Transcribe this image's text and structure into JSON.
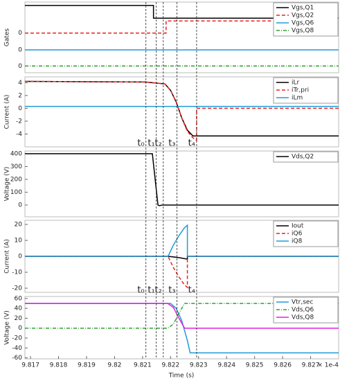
{
  "chart_data": [
    {
      "type": "line",
      "ylabel": "Gates",
      "ylim": [
        -1,
        9.5
      ],
      "yticks": [
        {
          "value": 0,
          "label": "0"
        },
        {
          "value": 2.4,
          "label": "0"
        },
        {
          "value": 4.9,
          "label": "0"
        }
      ],
      "series": [
        {
          "name": "Vgs,Q1",
          "color": "#000000",
          "style": "solid",
          "x": [
            9.8168,
            9.82139,
            9.82139,
            9.828
          ],
          "values": [
            9,
            9,
            7.1,
            7.1
          ]
        },
        {
          "name": "Vgs,Q2",
          "color": "#e8231f",
          "style": "dashed",
          "x": [
            9.8168,
            9.82184,
            9.82184,
            9.828
          ],
          "values": [
            4.9,
            4.9,
            6.7,
            6.7
          ]
        },
        {
          "name": "Vgs,Q6",
          "color": "#1e9bd7",
          "style": "solid",
          "x": [
            9.8168,
            9.828
          ],
          "values": [
            2.4,
            2.4
          ]
        },
        {
          "name": "Vgs,Q8",
          "color": "#2ca02c",
          "style": "dashdot",
          "x": [
            9.8168,
            9.828
          ],
          "values": [
            0,
            0
          ]
        }
      ]
    },
    {
      "type": "line",
      "ylabel": "Current (A)",
      "ylim": [
        -6,
        4.9
      ],
      "yticks": [
        -4,
        -2,
        0,
        2,
        4
      ],
      "series": [
        {
          "name": "iLr",
          "color": "#000000",
          "style": "solid",
          "x": [
            9.8168,
            9.8211,
            9.8218,
            9.822,
            9.8222,
            9.8224,
            9.8226,
            9.8228,
            9.828
          ],
          "values": [
            4.2,
            4.1,
            3.8,
            2.8,
            1,
            -1.5,
            -3.4,
            -4.3,
            -4.3
          ]
        },
        {
          "name": "iTr,pri",
          "color": "#e8231f",
          "style": "dashed",
          "x": [
            9.8168,
            9.8211,
            9.8218,
            9.822,
            9.8222,
            9.8224,
            9.8226,
            9.8228,
            9.82293,
            9.82293,
            9.828
          ],
          "values": [
            4.2,
            4.1,
            3.8,
            2.8,
            1,
            -1.5,
            -3.6,
            -4.6,
            -5,
            0,
            0
          ]
        },
        {
          "name": "iLm",
          "color": "#1e9bd7",
          "style": "solid",
          "x": [
            9.8168,
            9.828
          ],
          "values": [
            0.3,
            0.3
          ]
        }
      ]
    },
    {
      "type": "line",
      "ylabel": "Voltage (V)",
      "ylim": [
        -92,
        421
      ],
      "yticks": [
        0,
        100,
        200,
        300,
        400
      ],
      "series": [
        {
          "name": "Vds,Q2",
          "color": "#000000",
          "style": "solid",
          "x": [
            9.8168,
            9.82135,
            9.82155,
            9.8216,
            9.8217,
            9.828
          ],
          "values": [
            400,
            400,
            0,
            -5,
            0,
            0
          ]
        }
      ]
    },
    {
      "type": "line",
      "ylabel": "Current (A)",
      "ylim": [
        -22.6,
        22.6
      ],
      "yticks": [
        -20,
        -10,
        0,
        10,
        20
      ],
      "series": [
        {
          "name": "Iout",
          "color": "#000000",
          "style": "solid",
          "x": [
            9.8168,
            9.82191,
            9.8223,
            9.8226,
            9.8226,
            9.828
          ],
          "values": [
            0,
            0,
            -0.8,
            -1.8,
            0,
            0
          ]
        },
        {
          "name": "iQ6",
          "color": "#e8231f",
          "style": "dashed",
          "x": [
            9.8168,
            9.82191,
            9.8221,
            9.8223,
            9.8225,
            9.8226,
            9.8226,
            9.828
          ],
          "values": [
            0,
            0,
            -7,
            -13,
            -18,
            -19.5,
            0,
            0
          ]
        },
        {
          "name": "iQ8",
          "color": "#1e9bd7",
          "style": "solid",
          "x": [
            9.8168,
            9.82191,
            9.8221,
            9.8223,
            9.8225,
            9.8226,
            9.8226,
            9.828
          ],
          "values": [
            0,
            0,
            7,
            13,
            18,
            19.5,
            0,
            0
          ]
        }
      ]
    },
    {
      "type": "line",
      "ylabel": "Voltage (V)",
      "ylim": [
        -62,
        64
      ],
      "yticks": [
        -60,
        -40,
        -20,
        0,
        20,
        40,
        60
      ],
      "xlabel": "Time (s)",
      "xscale_label": "× 1e-4",
      "xlim": [
        9.8168,
        9.828
      ],
      "xticks": [
        9.817,
        9.818,
        9.819,
        9.82,
        9.821,
        9.822,
        9.823,
        9.824,
        9.825,
        9.826,
        9.827
      ],
      "series": [
        {
          "name": "Vtr,sec",
          "color": "#1e9bd7",
          "style": "solid",
          "x": [
            9.8168,
            9.822,
            9.8222,
            9.8224,
            9.8226,
            9.8227,
            9.828
          ],
          "values": [
            50,
            50,
            40,
            15,
            -25,
            -50,
            -50
          ]
        },
        {
          "name": "Vds,Q6",
          "color": "#2ca02c",
          "style": "dashdot",
          "x": [
            9.8168,
            9.8219,
            9.8221,
            9.8223,
            9.8225,
            9.828
          ],
          "values": [
            0,
            0,
            8,
            30,
            50,
            50
          ]
        },
        {
          "name": "Vds,Q8",
          "color": "#e020e0",
          "style": "solid",
          "x": [
            9.8168,
            9.8219,
            9.8221,
            9.8223,
            9.8225,
            9.828
          ],
          "values": [
            50,
            50,
            42,
            20,
            0,
            0
          ]
        }
      ]
    }
  ],
  "markers": {
    "x": [
      9.82112,
      9.82149,
      9.82174,
      9.82223,
      9.82293
    ],
    "labels": [
      "t₀",
      "t₁",
      "t₂",
      "t₃",
      "t₄"
    ]
  }
}
